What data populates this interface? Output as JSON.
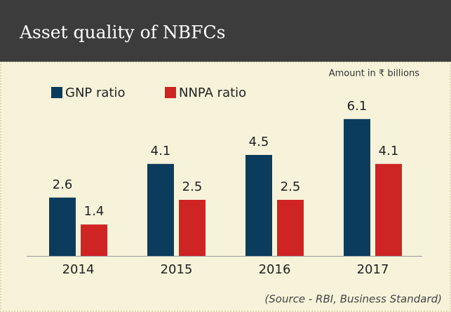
{
  "chart_data": {
    "type": "bar",
    "title": "Asset quality of NBFCs",
    "subtitle": "Amount in ₹ billions",
    "categories": [
      "2014",
      "2015",
      "2016",
      "2017"
    ],
    "series": [
      {
        "name": "GNP ratio",
        "color": "#0b3c5d",
        "values": [
          2.6,
          4.1,
          4.5,
          6.1
        ]
      },
      {
        "name": "NNPA ratio",
        "color": "#cf2424",
        "values": [
          1.4,
          2.5,
          2.5,
          4.1
        ]
      }
    ],
    "source": "(Source - RBI, Business Standard)"
  }
}
